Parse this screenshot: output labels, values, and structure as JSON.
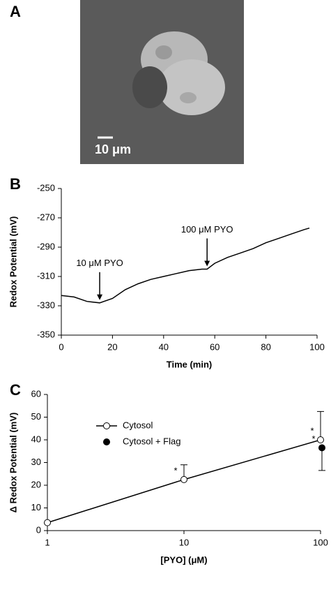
{
  "panel_labels": [
    "A",
    "B",
    "C"
  ],
  "image": {
    "scale_bar": "10 μm"
  },
  "chart_data": [
    {
      "type": "line",
      "xlabel": "Time (min)",
      "ylabel": "Redox Potential (mV)",
      "x": [
        0,
        5,
        10,
        15,
        20,
        25,
        30,
        35,
        40,
        45,
        50,
        55,
        57,
        60,
        65,
        70,
        75,
        80,
        85,
        90,
        95,
        97
      ],
      "series": [
        {
          "name": "Redox potential",
          "color": "#000000",
          "values": [
            -323,
            -324,
            -327,
            -328,
            -325,
            -319,
            -315,
            -312,
            -310,
            -308,
            -306,
            -305,
            -305,
            -301,
            -297,
            -294,
            -291,
            -287,
            -284,
            -281,
            -278,
            -277
          ]
        }
      ],
      "xlim": [
        0,
        100
      ],
      "xticks": [
        0,
        20,
        40,
        60,
        80,
        100
      ],
      "ylim": [
        -350,
        -250
      ],
      "yticks": [
        -350,
        -330,
        -310,
        -290,
        -270,
        -250
      ],
      "annotations": [
        {
          "text": "10 μM PYO",
          "x": 15
        },
        {
          "text": "100 μM PYO",
          "x": 57
        }
      ]
    },
    {
      "type": "line",
      "xlabel": "[PYO] (μM)",
      "ylabel": "Δ Redox Potential (mV)",
      "xscale": "log",
      "xlim": [
        1,
        100
      ],
      "xticks": [
        1,
        10,
        100
      ],
      "ylim": [
        0,
        60
      ],
      "yticks": [
        0,
        10,
        20,
        30,
        40,
        50,
        60
      ],
      "legend": "upper left",
      "series": [
        {
          "name": "Cytosol",
          "color": "#000000",
          "marker": "open",
          "line": true,
          "error_side": "up",
          "x": [
            1,
            10,
            100
          ],
          "values": [
            3.5,
            22.5,
            40
          ],
          "errors": [
            null,
            6.5,
            12.5
          ],
          "annotations": [
            null,
            "*",
            "*"
          ]
        },
        {
          "name": "Cytosol + Flag",
          "color": "#000000",
          "marker": "filled",
          "line": false,
          "error_side": "down",
          "x": [
            100
          ],
          "values": [
            36.5
          ],
          "errors": [
            10
          ],
          "annotations": [
            "*"
          ]
        }
      ]
    }
  ]
}
